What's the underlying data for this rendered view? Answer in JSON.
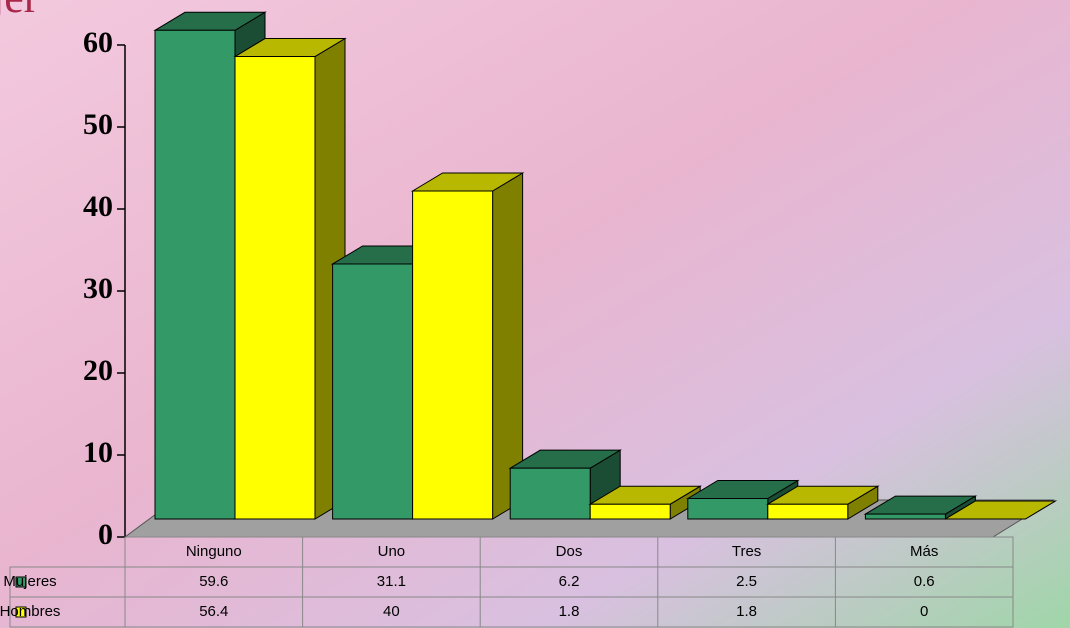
{
  "chart_data": {
    "type": "bar3d",
    "title": "jer",
    "categories": [
      "Ninguno",
      "Uno",
      "Dos",
      "Tres",
      "Más"
    ],
    "series": [
      {
        "name": "Mujeres",
        "color": "#339966",
        "values": [
          59.6,
          31.1,
          6.2,
          2.5,
          0.6
        ]
      },
      {
        "name": "Hombres",
        "color": "#ffff00",
        "values": [
          56.4,
          40,
          1.8,
          1.8,
          0
        ]
      }
    ],
    "ylim": [
      0,
      60
    ],
    "yticks": [
      0,
      10,
      20,
      30,
      40,
      50,
      60
    ],
    "data_table": true
  }
}
